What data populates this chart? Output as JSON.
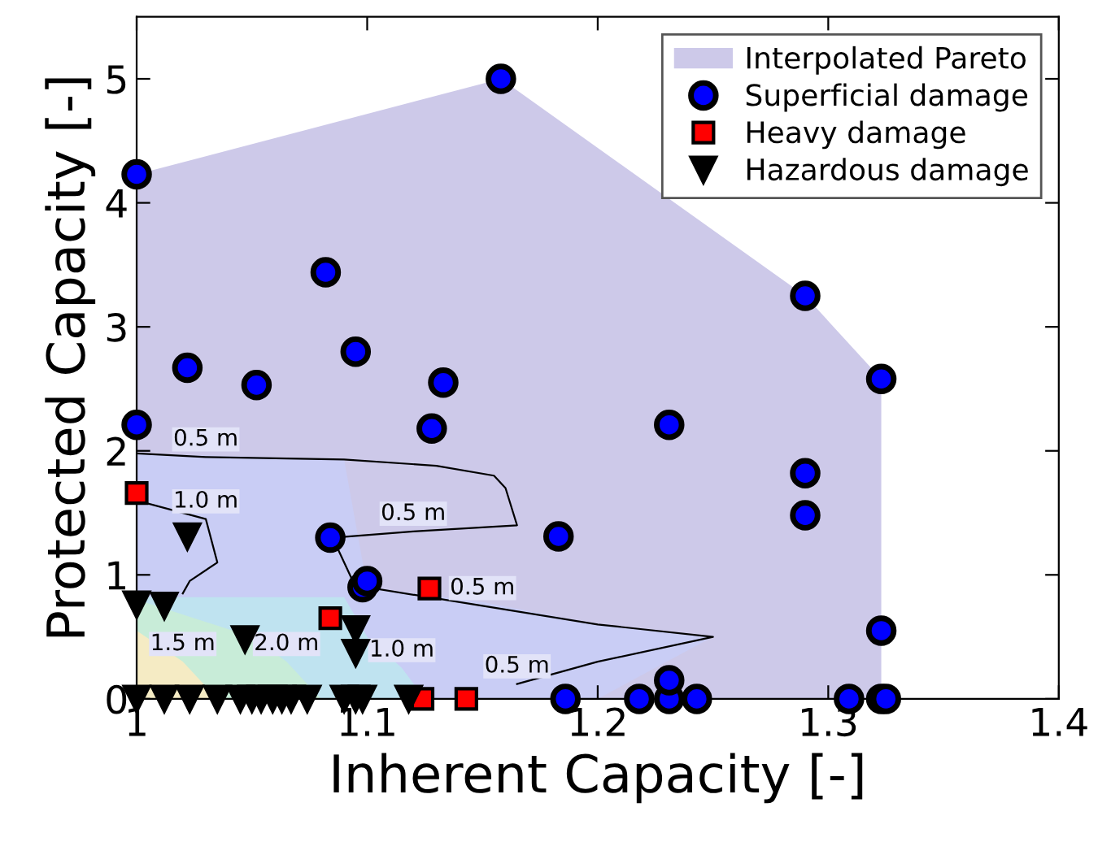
{
  "chart_data": {
    "type": "scatter",
    "xlabel": "Inherent Capacity [-]",
    "ylabel": "Protected Capacity [-]",
    "xlim": [
      1.0,
      1.4
    ],
    "ylim": [
      0,
      5.5
    ],
    "xticks": [
      1,
      1.1,
      1.2,
      1.3,
      1.4
    ],
    "yticks": [
      0,
      1,
      2,
      3,
      4,
      5
    ],
    "grid": false,
    "legend": "top right",
    "series": [
      {
        "name": "Interpolated Pareto",
        "type": "area",
        "color": "#cdc9e9",
        "x": [
          1.0,
          1.158,
          1.29,
          1.323
        ],
        "values": [
          4.23,
          5.0,
          3.25,
          2.58
        ]
      },
      {
        "type": "area",
        "color": "#c9cdf5",
        "x": [
          1.0,
          1.09,
          1.1,
          1.15,
          1.2,
          1.25,
          1.2
        ],
        "values": [
          1.98,
          1.93,
          0.9,
          0.78,
          0.6,
          0.5,
          0
        ]
      },
      {
        "type": "area",
        "color": "#bfe3f0",
        "x": [
          1.0,
          1.09,
          1.1,
          1.115,
          1.125
        ],
        "values": [
          0.82,
          0.82,
          0.5,
          0.25,
          0
        ]
      },
      {
        "type": "area",
        "color": "#c8ecd8",
        "x": [
          1.0,
          1.05,
          1.065,
          1.08
        ],
        "values": [
          0.8,
          0.5,
          0.3,
          0
        ]
      },
      {
        "type": "area",
        "color": "#f5ebc4",
        "x": [
          1.0,
          1.02,
          1.035
        ],
        "values": [
          0.55,
          0.3,
          0
        ]
      },
      {
        "type": "line",
        "color": "#000000",
        "x": [
          1.0,
          1.03,
          1.09,
          1.13,
          1.155,
          1.16,
          1.165,
          1.12,
          1.085,
          1.09,
          1.095
        ],
        "values": [
          1.98,
          1.95,
          1.93,
          1.88,
          1.8,
          1.7,
          1.4,
          1.35,
          1.3,
          1.1,
          0.9
        ]
      },
      {
        "type": "line",
        "color": "#000000",
        "x": [
          1.1,
          1.15,
          1.2,
          1.25,
          1.2,
          1.165
        ],
        "values": [
          0.9,
          0.75,
          0.6,
          0.5,
          0.3,
          0.12
        ]
      },
      {
        "type": "line",
        "color": "#000000",
        "x": [
          1.0,
          1.03,
          1.035,
          1.023,
          1.02
        ],
        "values": [
          1.6,
          1.45,
          1.1,
          0.95,
          0.85
        ]
      },
      {
        "name": "Superficial damage",
        "marker": "circle",
        "color": "#0000ff",
        "x": [
          1.0,
          1.158,
          1.082,
          1.022,
          1.052,
          1.095,
          1.133,
          1.29,
          1.323,
          1.0,
          1.128,
          1.231,
          1.084,
          1.183,
          1.098,
          1.1,
          1.29,
          1.29,
          1.323,
          1.186,
          1.218,
          1.231,
          1.243,
          1.309,
          1.323,
          1.325,
          1.231
        ],
        "values": [
          4.23,
          5.0,
          3.44,
          2.67,
          2.53,
          2.8,
          2.55,
          3.25,
          2.58,
          2.21,
          2.18,
          2.21,
          1.3,
          1.31,
          0.9,
          0.95,
          1.82,
          1.48,
          0.55,
          0,
          0,
          0,
          0,
          0,
          0,
          0,
          0.15
        ]
      },
      {
        "name": "Heavy damage",
        "marker": "square",
        "color": "#ff0000",
        "x": [
          1.0,
          1.127,
          1.084,
          1.124,
          1.143
        ],
        "values": [
          1.66,
          0.89,
          0.65,
          0,
          0
        ]
      },
      {
        "name": "Hazardous damage",
        "marker": "triangle",
        "color": "#000000",
        "x": [
          1.022,
          1.0,
          1.012,
          1.047,
          1.095,
          1.095,
          1.0,
          1.012,
          1.023,
          1.035,
          1.045,
          1.05,
          1.054,
          1.059,
          1.063,
          1.067,
          1.074,
          1.09,
          1.095,
          1.098,
          1.118
        ],
        "values": [
          1.31,
          0.76,
          0.75,
          0.48,
          0.56,
          0.37,
          0,
          0,
          0,
          0,
          0,
          0,
          0,
          0,
          0,
          0,
          0,
          0,
          0,
          0,
          0
        ]
      }
    ],
    "annotations": [
      {
        "text": "0.5 m",
        "x": 1.03,
        "y": 1.95
      },
      {
        "text": "0.5 m",
        "x": 1.12,
        "y": 1.35
      },
      {
        "text": "1.0 m",
        "x": 1.03,
        "y": 1.45
      },
      {
        "text": "0.5 m",
        "x": 1.15,
        "y": 0.75
      },
      {
        "text": "1.0 m",
        "x": 1.115,
        "y": 0.25
      },
      {
        "text": "2.0 m",
        "x": 1.065,
        "y": 0.3
      },
      {
        "text": "1.5 m",
        "x": 1.02,
        "y": 0.3
      },
      {
        "text": "0.5 m",
        "x": 1.165,
        "y": 0.12
      }
    ]
  }
}
